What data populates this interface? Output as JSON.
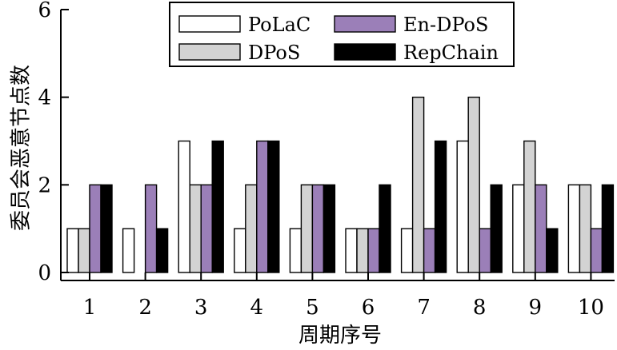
{
  "chart_data": {
    "type": "bar",
    "title": "",
    "xlabel": "周期序号",
    "ylabel": "委员会恶意节点数",
    "categories": [
      "1",
      "2",
      "3",
      "4",
      "5",
      "6",
      "7",
      "8",
      "9",
      "10"
    ],
    "ylim": [
      0,
      6
    ],
    "yticks": [
      "0",
      "2",
      "4",
      "6"
    ],
    "grid": false,
    "legend_position": "top-right",
    "series": [
      {
        "name": "PoLaC",
        "color": "#ffffff",
        "values": [
          1,
          1,
          3,
          1,
          1,
          1,
          1,
          3,
          2,
          2
        ]
      },
      {
        "name": "DPoS",
        "color": "#d3d3d3",
        "values": [
          1,
          0,
          2,
          2,
          2,
          1,
          4,
          4,
          3,
          2
        ]
      },
      {
        "name": "En-DPoS",
        "color": "#9b7fb8",
        "values": [
          2,
          2,
          2,
          3,
          2,
          1,
          1,
          1,
          2,
          1
        ]
      },
      {
        "name": "RepChain",
        "color": "#000000",
        "values": [
          2,
          1,
          3,
          3,
          2,
          2,
          3,
          2,
          1,
          2
        ]
      }
    ],
    "legend_order": [
      "PoLaC",
      "En-DPoS",
      "DPoS",
      "RepChain"
    ]
  }
}
